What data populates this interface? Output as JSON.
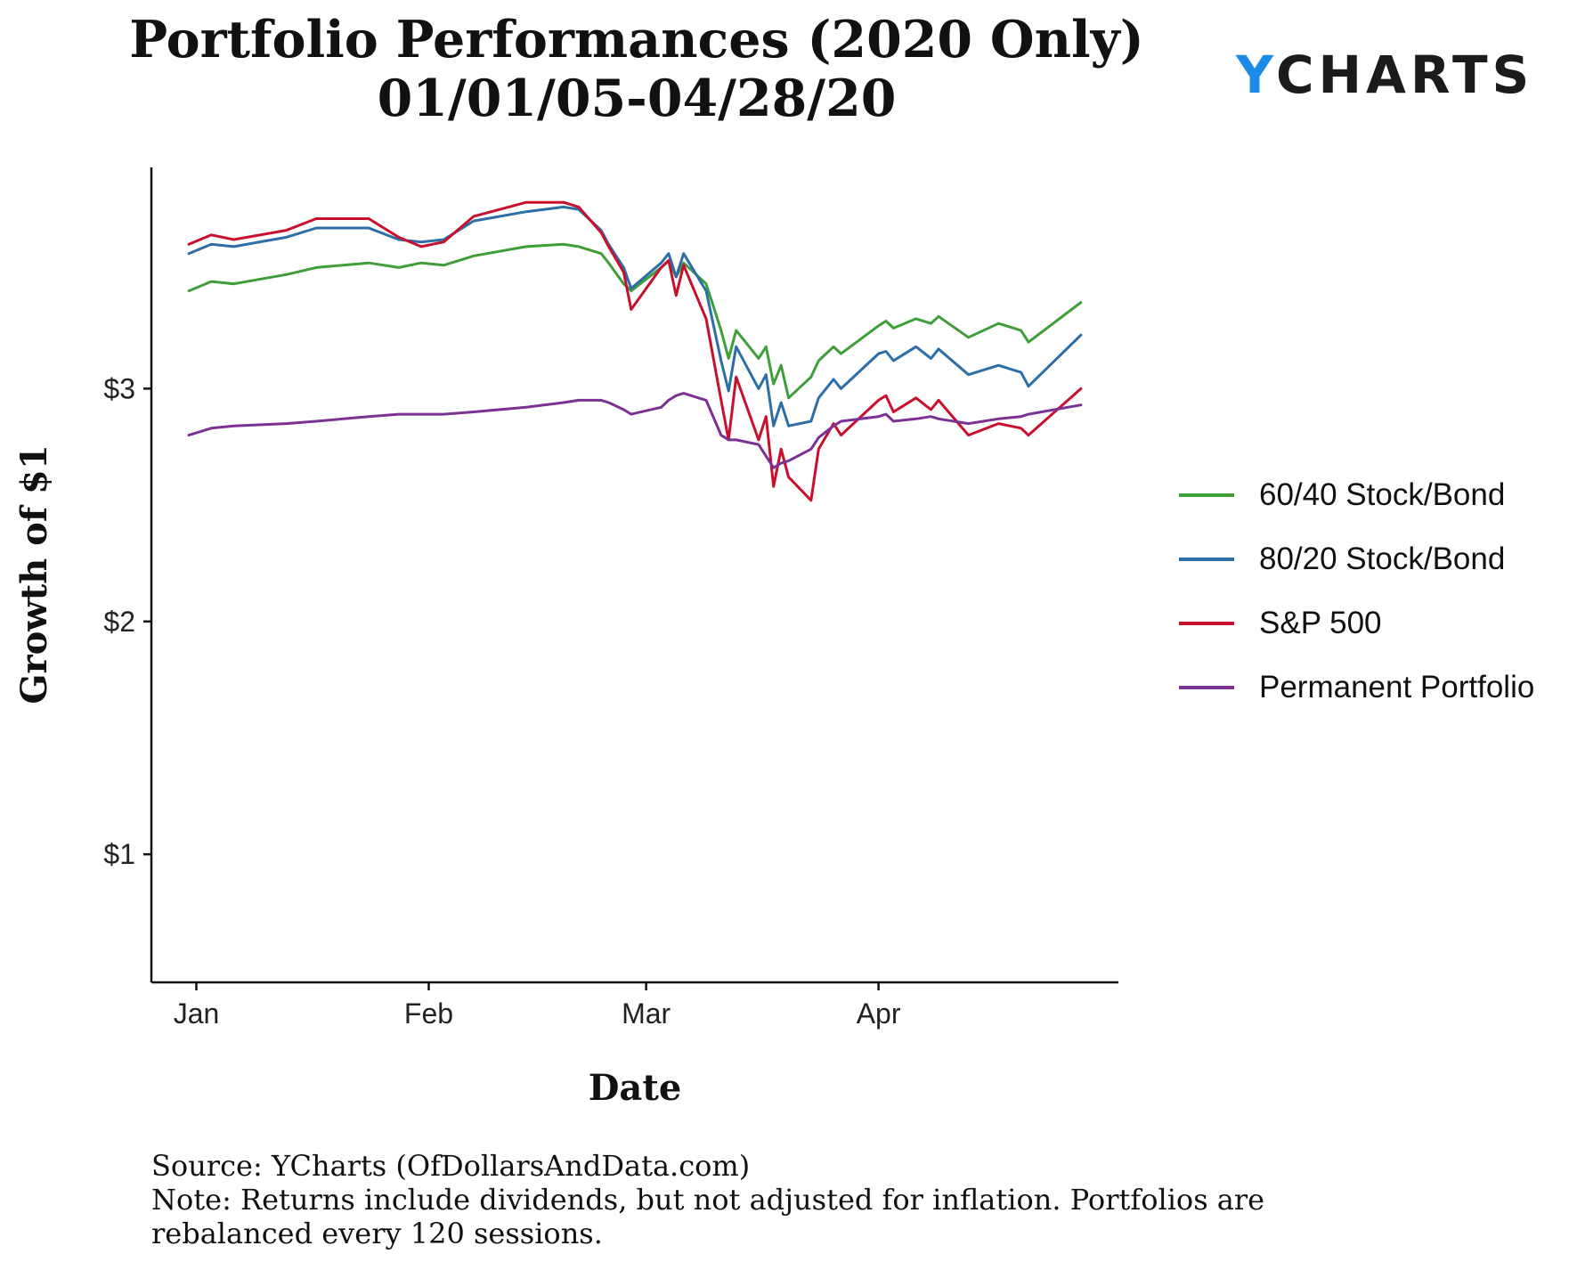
{
  "title": {
    "line1": "Portfolio Performances (2020 Only)",
    "line2": "01/01/05-04/28/20"
  },
  "brand": {
    "prefix": "Y",
    "rest": "CHARTS"
  },
  "chart_data": {
    "type": "line",
    "xlabel": "Date",
    "ylabel": "Growth of $1",
    "ylim": [
      0.45,
      3.95
    ],
    "y_ticks": [
      {
        "value": 1,
        "label": "$1"
      },
      {
        "value": 2,
        "label": "$2"
      },
      {
        "value": 3,
        "label": "$3"
      }
    ],
    "x_ticks": [
      {
        "date": "2020-01-01",
        "label": "Jan"
      },
      {
        "date": "2020-02-01",
        "label": "Feb"
      },
      {
        "date": "2020-03-01",
        "label": "Mar"
      },
      {
        "date": "2020-04-01",
        "label": "Apr"
      }
    ],
    "xlim": [
      "2019-12-26",
      "2020-05-03"
    ],
    "grid": false,
    "legend_position": "right",
    "x": [
      "2019-12-31",
      "2020-01-03",
      "2020-01-06",
      "2020-01-13",
      "2020-01-17",
      "2020-01-24",
      "2020-01-28",
      "2020-01-31",
      "2020-02-03",
      "2020-02-07",
      "2020-02-14",
      "2020-02-19",
      "2020-02-21",
      "2020-02-24",
      "2020-02-25",
      "2020-02-27",
      "2020-02-28",
      "2020-03-03",
      "2020-03-04",
      "2020-03-05",
      "2020-03-06",
      "2020-03-09",
      "2020-03-11",
      "2020-03-12",
      "2020-03-13",
      "2020-03-16",
      "2020-03-17",
      "2020-03-18",
      "2020-03-19",
      "2020-03-20",
      "2020-03-23",
      "2020-03-24",
      "2020-03-26",
      "2020-03-27",
      "2020-04-01",
      "2020-04-02",
      "2020-04-03",
      "2020-04-06",
      "2020-04-08",
      "2020-04-09",
      "2020-04-13",
      "2020-04-17",
      "2020-04-20",
      "2020-04-21",
      "2020-04-28"
    ],
    "series": [
      {
        "name": "60/40 Stock/Bond",
        "color": "#3f9e3a",
        "values": [
          3.42,
          3.46,
          3.45,
          3.49,
          3.52,
          3.54,
          3.52,
          3.54,
          3.53,
          3.57,
          3.61,
          3.62,
          3.61,
          3.58,
          3.54,
          3.45,
          3.42,
          3.52,
          3.55,
          3.48,
          3.54,
          3.45,
          3.25,
          3.13,
          3.25,
          3.13,
          3.18,
          3.02,
          3.1,
          2.96,
          3.05,
          3.12,
          3.18,
          3.15,
          3.27,
          3.29,
          3.26,
          3.3,
          3.28,
          3.31,
          3.22,
          3.28,
          3.25,
          3.2,
          3.37
        ]
      },
      {
        "name": "80/20 Stock/Bond",
        "color": "#2d6ea6",
        "values": [
          3.58,
          3.62,
          3.61,
          3.65,
          3.69,
          3.69,
          3.64,
          3.63,
          3.64,
          3.72,
          3.76,
          3.78,
          3.77,
          3.68,
          3.62,
          3.52,
          3.43,
          3.54,
          3.58,
          3.48,
          3.58,
          3.42,
          3.12,
          2.99,
          3.18,
          3.0,
          3.06,
          2.84,
          2.94,
          2.84,
          2.86,
          2.96,
          3.04,
          3.0,
          3.15,
          3.16,
          3.12,
          3.18,
          3.13,
          3.17,
          3.06,
          3.1,
          3.07,
          3.01,
          3.23
        ]
      },
      {
        "name": "S&P 500",
        "color": "#c8102e",
        "values": [
          3.62,
          3.66,
          3.64,
          3.68,
          3.73,
          3.73,
          3.65,
          3.61,
          3.63,
          3.74,
          3.8,
          3.8,
          3.78,
          3.67,
          3.61,
          3.5,
          3.34,
          3.52,
          3.55,
          3.4,
          3.53,
          3.3,
          2.95,
          2.78,
          3.05,
          2.78,
          2.88,
          2.58,
          2.74,
          2.62,
          2.52,
          2.74,
          2.85,
          2.8,
          2.95,
          2.97,
          2.9,
          2.96,
          2.91,
          2.95,
          2.8,
          2.85,
          2.83,
          2.8,
          3.0
        ]
      },
      {
        "name": "Permanent Portfolio",
        "color": "#7b3294",
        "values": [
          2.8,
          2.83,
          2.84,
          2.85,
          2.86,
          2.88,
          2.89,
          2.89,
          2.89,
          2.9,
          2.92,
          2.94,
          2.95,
          2.95,
          2.94,
          2.91,
          2.89,
          2.92,
          2.95,
          2.97,
          2.98,
          2.95,
          2.8,
          2.78,
          2.78,
          2.76,
          2.71,
          2.66,
          2.68,
          2.69,
          2.74,
          2.79,
          2.84,
          2.86,
          2.88,
          2.89,
          2.86,
          2.87,
          2.88,
          2.87,
          2.85,
          2.87,
          2.88,
          2.89,
          2.93
        ]
      }
    ]
  },
  "footnote": {
    "source": "Source: YCharts (OfDollarsAndData.com)",
    "note_line1": "Note: Returns include dividends, but not adjusted for inflation. Portfolios are",
    "note_line2": "rebalanced every 120 sessions."
  }
}
